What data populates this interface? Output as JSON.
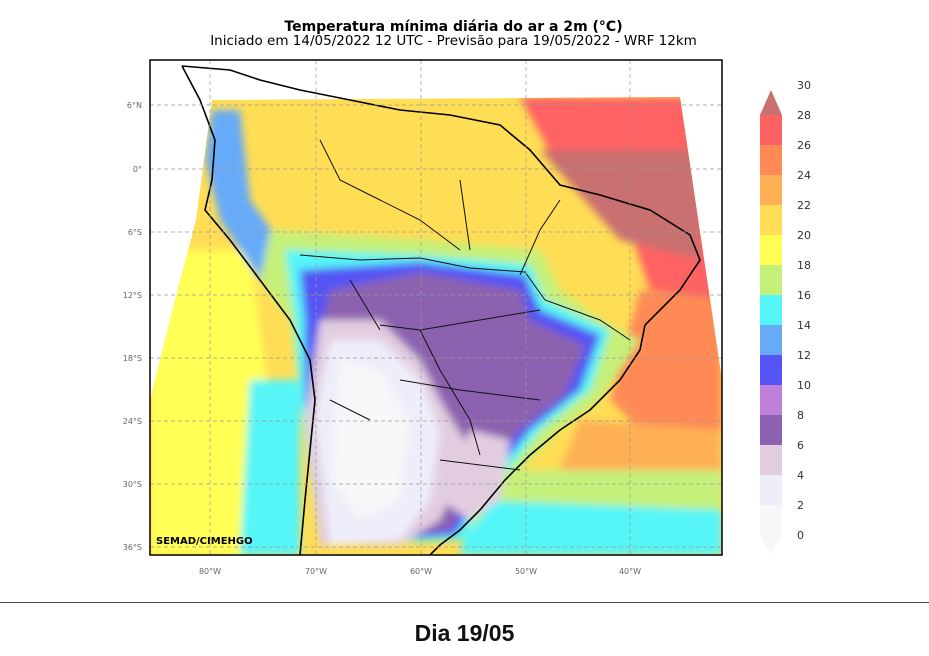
{
  "header": {
    "title": "Temperatura mínima diária do ar a 2m (°C)",
    "subtitle": "Iniciado em 14/05/2022 12 UTC - Previsão para 19/05/2022 - WRF 12km"
  },
  "map": {
    "lat_ticks": [
      "6°N",
      "0°",
      "6°S",
      "12°S",
      "18°S",
      "24°S",
      "30°S",
      "36°S"
    ],
    "lon_ticks": [
      "80°W",
      "70°W",
      "60°W",
      "50°W",
      "40°W"
    ],
    "credit": "SEMAD/CIMEHGO"
  },
  "colorbar": {
    "ticks": [
      "0",
      "2",
      "4",
      "6",
      "8",
      "10",
      "12",
      "14",
      "16",
      "18",
      "20",
      "22",
      "24",
      "26",
      "28",
      "30"
    ],
    "colors": [
      "#f7f6f9",
      "#eeeefa",
      "#e2cde0",
      "#8c62b0",
      "#c07fd8",
      "#5555f5",
      "#66aaf8",
      "#55f5f8",
      "#c5f07a",
      "#ffff55",
      "#ffdd55",
      "#ffb055",
      "#ff8a55",
      "#ff6262",
      "#c97070"
    ]
  },
  "footer": {
    "label": "Dia 19/05"
  }
}
